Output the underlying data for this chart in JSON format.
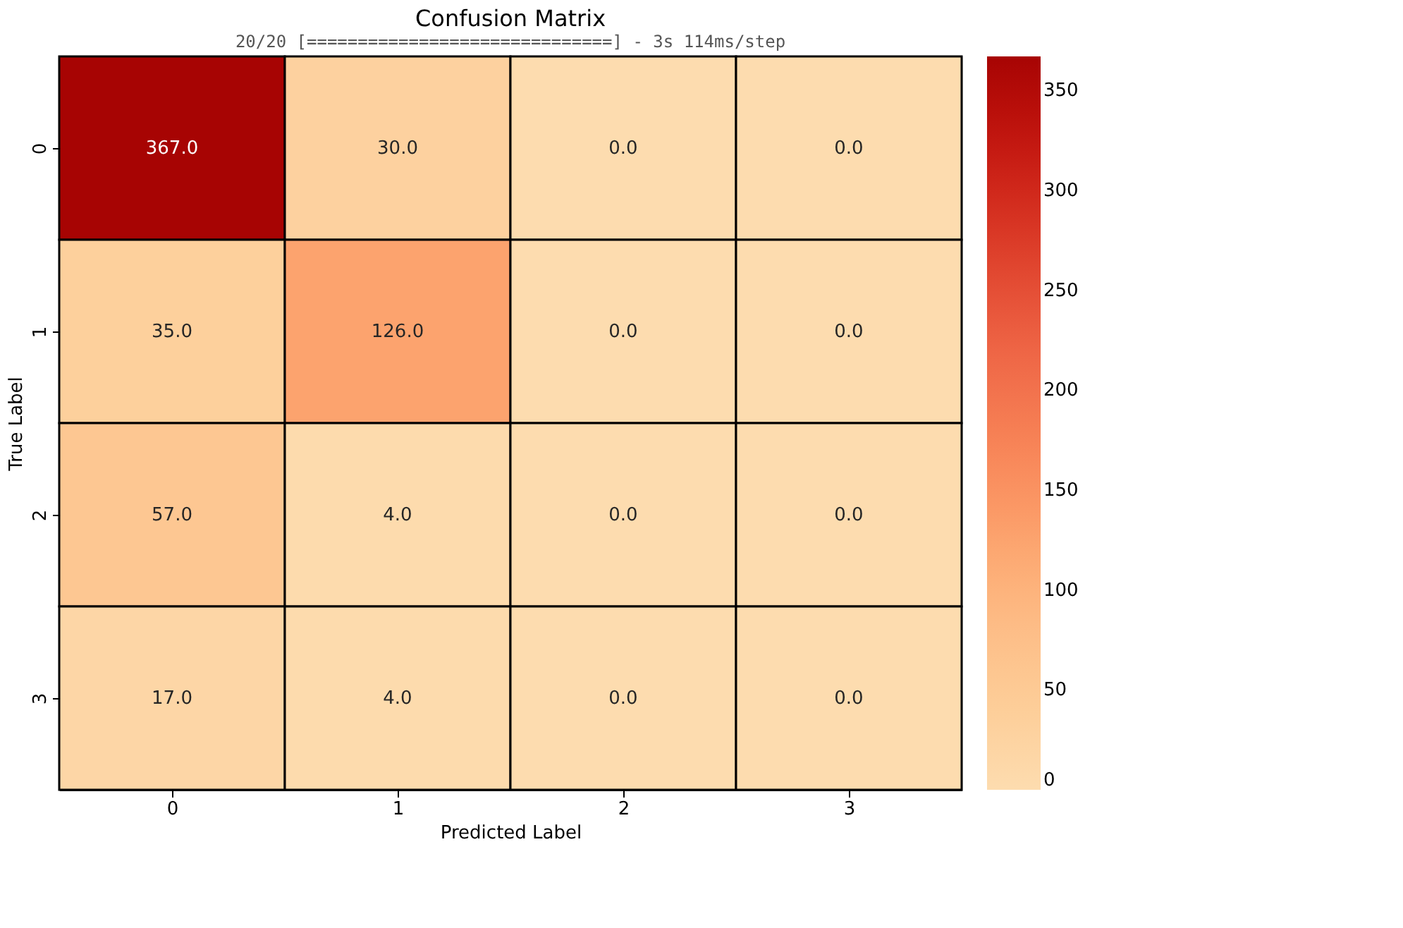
{
  "chart_data": {
    "type": "heatmap",
    "title": "Confusion Matrix",
    "xlabel": "Predicted Label",
    "ylabel": "True Label",
    "annotations": [
      "20/20 [==============================] - 3s 114ms/step"
    ],
    "categories": [
      "0",
      "1",
      "2",
      "3"
    ],
    "y_categories": [
      "0",
      "1",
      "2",
      "3"
    ],
    "cells": [
      [
        367,
        30,
        0,
        0
      ],
      [
        35,
        126,
        0,
        0
      ],
      [
        57,
        4,
        0,
        0
      ],
      [
        17,
        4,
        0,
        0
      ]
    ],
    "cell_labels": [
      [
        "367.0",
        "30.0",
        "0.0",
        "0.0"
      ],
      [
        "35.0",
        "126.0",
        "0.0",
        "0.0"
      ],
      [
        "57.0",
        "4.0",
        "0.0",
        "0.0"
      ],
      [
        "17.0",
        "4.0",
        "0.0",
        "0.0"
      ]
    ],
    "clim": [
      0,
      367
    ],
    "cticks": [
      0,
      50,
      100,
      150,
      200,
      250,
      300,
      350
    ]
  }
}
